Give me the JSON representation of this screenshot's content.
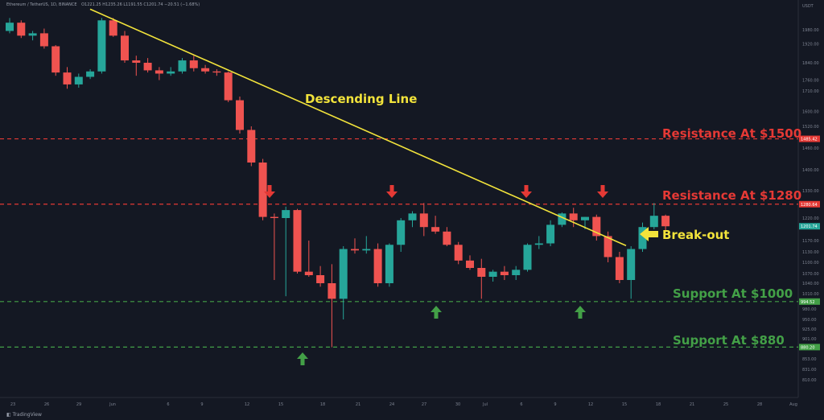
{
  "header": {
    "pair": "Ethereum / TetherUS, 1D, BINANCE",
    "ohlc": "O1221.25  H1235.26  L1191.55  C1201.74  −20.51 (−1.68%)"
  },
  "branding": {
    "label": "TradingView"
  },
  "colors": {
    "up": "#26a69a",
    "down": "#ef5350",
    "resistance": "#e53935",
    "support": "#43a047",
    "trend": "#f2e33b",
    "background": "#141823"
  },
  "chart_data": {
    "type": "candlestick",
    "x_ticks": [
      "23",
      "26",
      "29",
      "Jun",
      "6",
      "9",
      "12",
      "15",
      "18",
      "21",
      "24",
      "27",
      "30",
      "Jul",
      "6",
      "9",
      "12",
      "15",
      "18",
      "21",
      "25",
      "28",
      "Aug"
    ],
    "y_ticks": [
      "1980.00",
      "1920.00",
      "1840.00",
      "1760.00",
      "1710.00",
      "1600.00",
      "1520.00",
      "1460.00",
      "1400.00",
      "1330.00",
      "1280.00",
      "1220.00",
      "1170.00",
      "1130.00",
      "1100.00",
      "1070.00",
      "1040.00",
      "1010.00",
      "980.00",
      "950.00",
      "925.00",
      "901.00",
      "877.00",
      "853.00",
      "831.00",
      "810.00"
    ],
    "y_axis_top_label": "USDT",
    "price_tags": [
      {
        "label": "1485.42",
        "price": 1485.42,
        "color": "#e53935"
      },
      {
        "label": "1280.64",
        "price": 1280.64,
        "color": "#e53935"
      },
      {
        "label": "1201.74",
        "price": 1201.74,
        "color": "#26a69a"
      },
      {
        "label": "994.52",
        "price": 994.52,
        "color": "#43a047"
      },
      {
        "label": "880.20",
        "price": 880.2,
        "color": "#43a047"
      }
    ],
    "levels": [
      {
        "name": "Resistance At $1500",
        "price": 1485.42,
        "kind": "resistance"
      },
      {
        "name": "Resistance At $1280",
        "price": 1280.64,
        "kind": "resistance"
      },
      {
        "name": "Support At $1000",
        "price": 994.52,
        "kind": "support"
      },
      {
        "name": "Support At $880",
        "price": 880.2,
        "kind": "support"
      }
    ],
    "trendline": {
      "label": "Descending Line",
      "from": {
        "index": 7,
        "price": 2030
      },
      "to": {
        "index": 52,
        "price": 1155
      }
    },
    "breakout_label": "Break-out",
    "candles": [
      {
        "o": 1975,
        "h": 2030,
        "l": 1965,
        "c": 2010
      },
      {
        "o": 2010,
        "h": 2020,
        "l": 1945,
        "c": 1955
      },
      {
        "o": 1955,
        "h": 1975,
        "l": 1935,
        "c": 1965
      },
      {
        "o": 1965,
        "h": 1985,
        "l": 1900,
        "c": 1910
      },
      {
        "o": 1910,
        "h": 1915,
        "l": 1780,
        "c": 1795
      },
      {
        "o": 1795,
        "h": 1820,
        "l": 1720,
        "c": 1740
      },
      {
        "o": 1740,
        "h": 1790,
        "l": 1725,
        "c": 1775
      },
      {
        "o": 1775,
        "h": 1810,
        "l": 1765,
        "c": 1800
      },
      {
        "o": 1800,
        "h": 2030,
        "l": 1790,
        "c": 2020
      },
      {
        "o": 2020,
        "h": 2030,
        "l": 1950,
        "c": 1955
      },
      {
        "o": 1955,
        "h": 1975,
        "l": 1840,
        "c": 1850
      },
      {
        "o": 1850,
        "h": 1870,
        "l": 1780,
        "c": 1840
      },
      {
        "o": 1840,
        "h": 1860,
        "l": 1795,
        "c": 1805
      },
      {
        "o": 1805,
        "h": 1820,
        "l": 1760,
        "c": 1790
      },
      {
        "o": 1790,
        "h": 1820,
        "l": 1780,
        "c": 1800
      },
      {
        "o": 1800,
        "h": 1860,
        "l": 1790,
        "c": 1850
      },
      {
        "o": 1850,
        "h": 1870,
        "l": 1800,
        "c": 1815
      },
      {
        "o": 1815,
        "h": 1830,
        "l": 1790,
        "c": 1800
      },
      {
        "o": 1800,
        "h": 1810,
        "l": 1780,
        "c": 1795
      },
      {
        "o": 1795,
        "h": 1800,
        "l": 1650,
        "c": 1660
      },
      {
        "o": 1660,
        "h": 1680,
        "l": 1500,
        "c": 1510
      },
      {
        "o": 1510,
        "h": 1520,
        "l": 1410,
        "c": 1420
      },
      {
        "o": 1420,
        "h": 1430,
        "l": 1215,
        "c": 1225
      },
      {
        "o": 1225,
        "h": 1240,
        "l": 1050,
        "c": 1220
      },
      {
        "o": 1220,
        "h": 1270,
        "l": 1005,
        "c": 1255
      },
      {
        "o": 1255,
        "h": 1260,
        "l": 1070,
        "c": 1075
      },
      {
        "o": 1075,
        "h": 1170,
        "l": 1060,
        "c": 1065
      },
      {
        "o": 1065,
        "h": 1090,
        "l": 1030,
        "c": 1040
      },
      {
        "o": 1040,
        "h": 1095,
        "l": 880,
        "c": 1000
      },
      {
        "o": 1000,
        "h": 1150,
        "l": 950,
        "c": 1140
      },
      {
        "o": 1140,
        "h": 1175,
        "l": 1125,
        "c": 1135
      },
      {
        "o": 1135,
        "h": 1180,
        "l": 1125,
        "c": 1140
      },
      {
        "o": 1140,
        "h": 1160,
        "l": 1030,
        "c": 1040
      },
      {
        "o": 1040,
        "h": 1160,
        "l": 1030,
        "c": 1155
      },
      {
        "o": 1155,
        "h": 1220,
        "l": 1130,
        "c": 1215
      },
      {
        "o": 1215,
        "h": 1250,
        "l": 1200,
        "c": 1240
      },
      {
        "o": 1240,
        "h": 1285,
        "l": 1180,
        "c": 1200
      },
      {
        "o": 1200,
        "h": 1230,
        "l": 1185,
        "c": 1190
      },
      {
        "o": 1190,
        "h": 1200,
        "l": 1150,
        "c": 1155
      },
      {
        "o": 1155,
        "h": 1165,
        "l": 1095,
        "c": 1105
      },
      {
        "o": 1105,
        "h": 1120,
        "l": 1080,
        "c": 1085
      },
      {
        "o": 1085,
        "h": 1110,
        "l": 1000,
        "c": 1060
      },
      {
        "o": 1060,
        "h": 1080,
        "l": 1045,
        "c": 1075
      },
      {
        "o": 1075,
        "h": 1090,
        "l": 1050,
        "c": 1065
      },
      {
        "o": 1065,
        "h": 1090,
        "l": 1050,
        "c": 1080
      },
      {
        "o": 1080,
        "h": 1160,
        "l": 1075,
        "c": 1155
      },
      {
        "o": 1155,
        "h": 1180,
        "l": 1140,
        "c": 1160
      },
      {
        "o": 1160,
        "h": 1215,
        "l": 1150,
        "c": 1205
      },
      {
        "o": 1205,
        "h": 1245,
        "l": 1200,
        "c": 1240
      },
      {
        "o": 1240,
        "h": 1265,
        "l": 1200,
        "c": 1215
      },
      {
        "o": 1215,
        "h": 1225,
        "l": 1195,
        "c": 1225
      },
      {
        "o": 1225,
        "h": 1235,
        "l": 1170,
        "c": 1180
      },
      {
        "o": 1180,
        "h": 1190,
        "l": 1100,
        "c": 1115
      },
      {
        "o": 1115,
        "h": 1130,
        "l": 1040,
        "c": 1050
      },
      {
        "o": 1050,
        "h": 1150,
        "l": 1000,
        "c": 1140
      },
      {
        "o": 1140,
        "h": 1210,
        "l": 1130,
        "c": 1200
      },
      {
        "o": 1200,
        "h": 1285,
        "l": 1195,
        "c": 1230
      },
      {
        "o": 1230,
        "h": 1235,
        "l": 1190,
        "c": 1201.74
      }
    ]
  }
}
